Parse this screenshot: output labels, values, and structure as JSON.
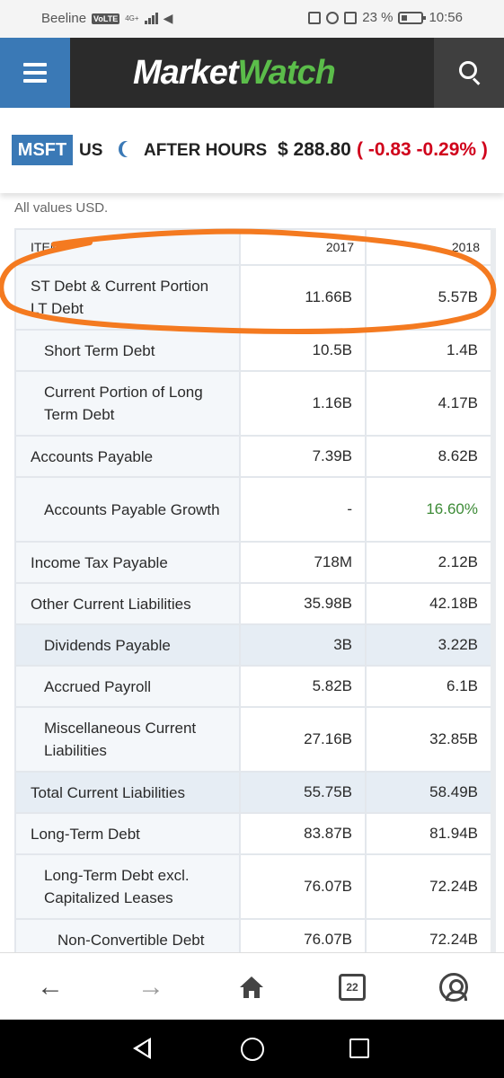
{
  "status_bar": {
    "carrier": "Beeline",
    "volte": "VoLTE",
    "network": "4G+",
    "battery": "23 %",
    "time": "10:56"
  },
  "header": {
    "logo_part1": "Market",
    "logo_part2": "Watch",
    "menu_icon": "hamburger-menu-icon",
    "search_icon": "search-icon"
  },
  "ticker": {
    "symbol": "MSFT",
    "country": "US",
    "session": "AFTER HOURS",
    "price": "$ 288.80",
    "change": "( -0.83  -0.29% )"
  },
  "note": "All values USD.",
  "table": {
    "header_label": "ITEM",
    "columns": [
      "2017",
      "2018"
    ],
    "rows": [
      {
        "label": "ST Debt & Current Portion LT Debt",
        "v1": "11.66B",
        "v2": "5.57B",
        "level": 0
      },
      {
        "label": "Short Term Debt",
        "v1": "10.5B",
        "v2": "1.4B",
        "level": 1
      },
      {
        "label": "Current Portion of Long Term Debt",
        "v1": "1.16B",
        "v2": "4.17B",
        "level": 1
      },
      {
        "label": "Accounts Payable",
        "v1": "7.39B",
        "v2": "8.62B",
        "level": 0
      },
      {
        "label": "Accounts Payable Growth",
        "v1": "-",
        "v2": "16.60%",
        "level": 1
      },
      {
        "label": "Income Tax Payable",
        "v1": "718M",
        "v2": "2.12B",
        "level": 0
      },
      {
        "label": "Other Current Liabilities",
        "v1": "35.98B",
        "v2": "42.18B",
        "level": 0
      },
      {
        "label": "Dividends Payable",
        "v1": "3B",
        "v2": "3.22B",
        "level": 1
      },
      {
        "label": "Accrued Payroll",
        "v1": "5.82B",
        "v2": "6.1B",
        "level": 1
      },
      {
        "label": "Miscellaneous Current Liabilities",
        "v1": "27.16B",
        "v2": "32.85B",
        "level": 1
      },
      {
        "label": "Total Current Liabilities",
        "v1": "55.75B",
        "v2": "58.49B",
        "level": 0
      },
      {
        "label": "Long-Term Debt",
        "v1": "83.87B",
        "v2": "81.94B",
        "level": 0
      },
      {
        "label": "Long-Term Debt excl. Capitalized Leases",
        "v1": "76.07B",
        "v2": "72.24B",
        "level": 1
      },
      {
        "label": "Non-Convertible Debt",
        "v1": "76.07B",
        "v2": "72.24B",
        "level": 2
      }
    ]
  },
  "browser_nav": {
    "tab_count": "22"
  },
  "colors": {
    "brand_blue": "#3a79b6",
    "logo_green": "#5bbd4a",
    "negative_red": "#d0021b",
    "positive_green": "#3d8b37",
    "annotation_orange": "#f47a20"
  }
}
